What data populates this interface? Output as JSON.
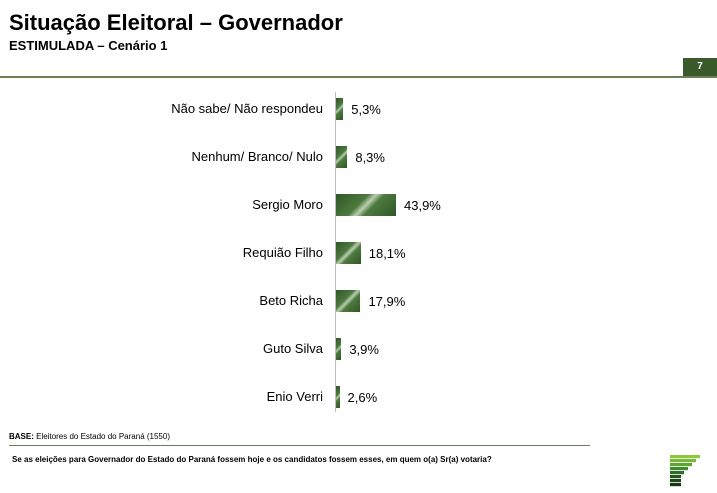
{
  "header": {
    "title": "Situação Eleitoral – Governador",
    "subtitle": "ESTIMULADA – Cenário 1",
    "page_number": "7"
  },
  "colors": {
    "accent": "#3b5a2c",
    "bar": "#3f6a32",
    "rule": "#6b7f57"
  },
  "chart_data": {
    "type": "bar",
    "orientation": "horizontal",
    "categories": [
      "Não sabe/ Não respondeu",
      "Nenhum/ Branco/ Nulo",
      "Sergio Moro",
      "Requião Filho",
      "Beto Richa",
      "Guto Silva",
      "Enio Verri"
    ],
    "values": [
      5.3,
      8.3,
      43.9,
      18.1,
      17.9,
      3.9,
      2.6
    ],
    "value_labels": [
      "5,3%",
      "8,3%",
      "43,9%",
      "18,1%",
      "17,9%",
      "3,9%",
      "2,6%"
    ],
    "unit": "%",
    "xlim": [
      0,
      100
    ],
    "grid": false,
    "legend": "none"
  },
  "footer": {
    "base_label": "BASE:",
    "base_text": "Eleitores do Estado do Paraná (1550)",
    "question": "Se as eleições para Governador do Estado do Paraná fossem hoje e os candidatos fossem esses, em quem o(a) Sr(a) votaria?",
    "logo_icon": "stacked-bars-logo-icon"
  }
}
